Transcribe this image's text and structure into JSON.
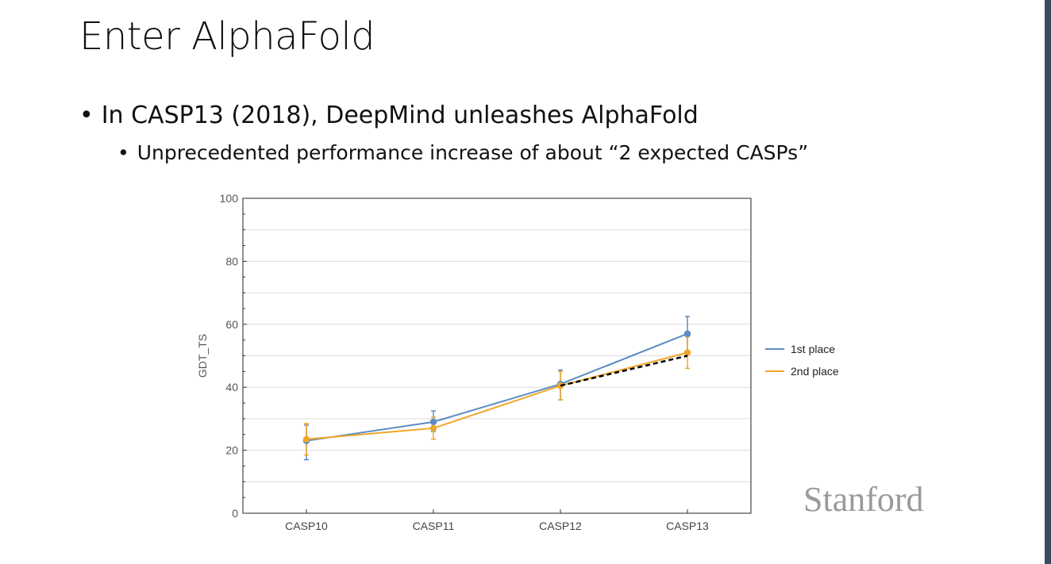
{
  "slide": {
    "title": "Enter AlphaFold",
    "bullet1": "In CASP13 (2018), DeepMind unleashes AlphaFold",
    "bullet2": "Unprecedented performance increase of about “2 expected CASPs”",
    "bullet_symbol": "•",
    "logo": "Stanford"
  },
  "colors": {
    "first_place": "#5b8cc4",
    "second_place": "#f0a52a",
    "projection": "#000000",
    "right_bar": "#3b4a60"
  },
  "chart_data": {
    "type": "line",
    "title": "",
    "xlabel": "",
    "ylabel": "GDT_TS",
    "categories": [
      "CASP10",
      "CASP11",
      "CASP12",
      "CASP13"
    ],
    "ylim": [
      0,
      100
    ],
    "yticks": [
      0,
      20,
      40,
      60,
      80,
      100
    ],
    "grid": true,
    "legend_position": "right",
    "series": [
      {
        "name": "1st place",
        "values": [
          23,
          29,
          41,
          57
        ],
        "err_low": [
          17,
          26,
          36,
          51
        ],
        "err_high": [
          28,
          32.5,
          45.5,
          62.5
        ]
      },
      {
        "name": "2nd place",
        "values": [
          23.5,
          27,
          40.5,
          51
        ],
        "err_low": [
          18.5,
          23.5,
          36,
          46
        ],
        "err_high": [
          28.5,
          30.5,
          45,
          56
        ]
      }
    ],
    "projection": {
      "style": "dashed",
      "from": [
        2,
        40.5
      ],
      "to": [
        3,
        50
      ]
    }
  }
}
